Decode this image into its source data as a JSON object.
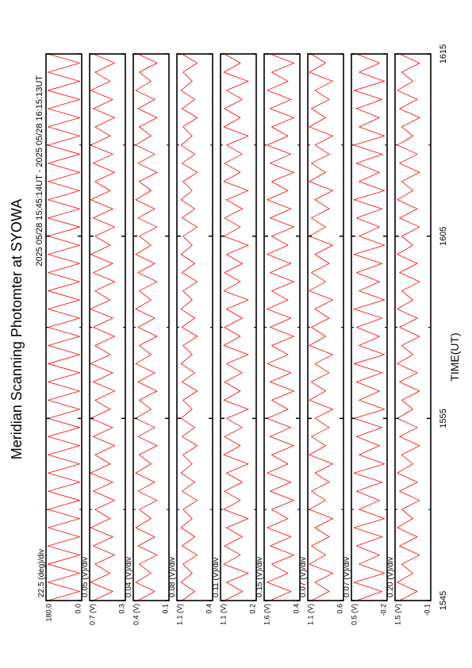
{
  "chart_data": {
    "type": "line",
    "title": "Meridian Scanning Photomter at SYOWA",
    "subtitle": "2025 05/28 15:45:14UT - 2025 05/28 16:15:13UT",
    "xlabel": "TIME(UT)",
    "xlim": [
      0,
      30
    ],
    "xticks": [
      {
        "value": 0,
        "label": "1545"
      },
      {
        "value": 10,
        "label": "1555"
      },
      {
        "value": 20,
        "label": "1605"
      },
      {
        "value": 30,
        "label": "1615"
      }
    ],
    "xminor": [
      5,
      15,
      25
    ],
    "x": [
      0,
      0.5,
      1,
      1.5,
      2,
      2.5,
      3,
      3.5,
      4,
      4.5,
      5,
      5.5,
      6,
      6.5,
      7,
      7.5,
      8,
      8.5,
      9,
      9.5,
      10,
      10.5,
      11,
      11.5,
      12,
      12.5,
      13,
      13.5,
      14,
      14.5,
      15,
      15.5,
      16,
      16.5,
      17,
      17.5,
      18,
      18.5,
      19,
      19.5,
      20,
      20.5,
      21,
      21.5,
      22,
      22.5,
      23,
      23.5,
      24,
      24.5,
      25,
      25.5,
      26,
      26.5,
      27,
      27.5,
      28,
      28.5,
      29,
      29.5,
      30
    ],
    "panels": [
      {
        "scale_label": "22.5 (deg)/div",
        "color": "#ff0000",
        "ylim": [
          0,
          180
        ],
        "yticks": [
          {
            "value": 0,
            "label": "0.0"
          },
          {
            "value": 180,
            "label": "180.0"
          }
        ],
        "values": [
          170,
          10,
          170,
          10,
          170,
          10,
          170,
          10,
          170,
          10,
          170,
          10,
          170,
          10,
          170,
          10,
          170,
          10,
          170,
          10,
          170,
          10,
          170,
          10,
          170,
          10,
          170,
          10,
          170,
          10,
          170,
          10,
          170,
          10,
          170,
          10,
          170,
          10,
          170,
          10,
          170,
          10,
          170,
          10,
          170,
          10,
          170,
          10,
          170,
          10,
          170,
          10,
          170,
          10,
          170,
          10,
          170,
          10,
          170,
          10,
          170
        ]
      },
      {
        "scale_label": "0.05 (V)/div",
        "color": "#ff0000",
        "ylim": [
          0.3,
          0.7
        ],
        "yticks": [
          {
            "value": 0.3,
            "label": "0.3"
          },
          {
            "value": 0.7,
            "label": "0.7 (V)"
          }
        ],
        "values": [
          0.66,
          0.44,
          0.69,
          0.47,
          0.64,
          0.42,
          0.66,
          0.44,
          0.69,
          0.47,
          0.64,
          0.42,
          0.66,
          0.44,
          0.69,
          0.47,
          0.64,
          0.42,
          0.66,
          0.44,
          0.69,
          0.47,
          0.64,
          0.42,
          0.66,
          0.44,
          0.69,
          0.47,
          0.64,
          0.42,
          0.66,
          0.44,
          0.69,
          0.47,
          0.64,
          0.42,
          0.66,
          0.44,
          0.69,
          0.47,
          0.64,
          0.42,
          0.66,
          0.44,
          0.69,
          0.47,
          0.64,
          0.42,
          0.66,
          0.44,
          0.69,
          0.47,
          0.64,
          0.42,
          0.66,
          0.44,
          0.69,
          0.47,
          0.64,
          0.42,
          0.66
        ]
      },
      {
        "scale_label": "0.04 (V)/div",
        "color": "#ff0000",
        "ylim": [
          0.1,
          0.4
        ],
        "yticks": [
          {
            "value": 0.1,
            "label": "0.1"
          },
          {
            "value": 0.4,
            "label": "0.4 (V)"
          }
        ],
        "values": [
          0.36,
          0.22,
          0.38,
          0.25,
          0.35,
          0.2,
          0.36,
          0.22,
          0.38,
          0.25,
          0.35,
          0.2,
          0.36,
          0.22,
          0.38,
          0.25,
          0.35,
          0.2,
          0.36,
          0.22,
          0.38,
          0.25,
          0.35,
          0.2,
          0.36,
          0.22,
          0.38,
          0.25,
          0.35,
          0.2,
          0.36,
          0.22,
          0.38,
          0.25,
          0.35,
          0.2,
          0.36,
          0.22,
          0.38,
          0.25,
          0.35,
          0.2,
          0.36,
          0.22,
          0.38,
          0.25,
          0.35,
          0.2,
          0.36,
          0.22,
          0.38,
          0.25,
          0.35,
          0.2,
          0.36,
          0.22,
          0.38,
          0.25,
          0.35,
          0.2,
          0.36
        ]
      },
      {
        "scale_label": "0.08 (V)/div",
        "color": "#ff0000",
        "ylim": [
          0.4,
          1.1
        ],
        "yticks": [
          {
            "value": 0.4,
            "label": "0.4"
          },
          {
            "value": 1.1,
            "label": "1.1 (V)"
          }
        ],
        "values": [
          1.0,
          0.75,
          1.02,
          0.8,
          0.98,
          0.7,
          1.0,
          0.75,
          1.02,
          0.8,
          0.98,
          0.7,
          1.0,
          0.75,
          1.02,
          0.8,
          0.98,
          0.7,
          1.0,
          0.75,
          1.02,
          0.8,
          0.98,
          0.7,
          1.0,
          0.75,
          1.02,
          0.8,
          0.98,
          0.7,
          1.0,
          0.75,
          1.02,
          0.8,
          0.98,
          0.7,
          1.0,
          0.75,
          1.02,
          0.8,
          0.98,
          0.7,
          1.0,
          0.75,
          1.02,
          0.8,
          0.98,
          0.7,
          1.0,
          0.75,
          1.02,
          0.8,
          0.98,
          0.7,
          1.0,
          0.75,
          1.02,
          0.8,
          0.98,
          0.7,
          1.0
        ]
      },
      {
        "scale_label": "0.11 (V)/div",
        "color": "#ff0000",
        "ylim": [
          0.2,
          1.1
        ],
        "yticks": [
          {
            "value": 0.2,
            "label": "0.2"
          },
          {
            "value": 1.1,
            "label": "1.1 (V)"
          }
        ],
        "values": [
          1.0,
          0.55,
          0.95,
          0.4,
          1.02,
          0.6,
          1.0,
          0.55,
          0.95,
          0.4,
          1.02,
          0.6,
          1.0,
          0.55,
          0.95,
          0.4,
          1.02,
          0.6,
          1.0,
          0.55,
          0.95,
          0.4,
          1.02,
          0.6,
          1.0,
          0.55,
          0.95,
          0.4,
          1.02,
          0.6,
          1.0,
          0.55,
          0.95,
          0.4,
          1.02,
          0.6,
          1.0,
          0.55,
          0.95,
          0.4,
          1.02,
          0.6,
          1.0,
          0.55,
          0.95,
          0.4,
          1.02,
          0.6,
          1.0,
          0.55,
          0.95,
          0.4,
          1.02,
          0.6,
          1.0,
          0.55,
          0.95,
          0.4,
          1.02,
          0.6,
          1.0
        ]
      },
      {
        "scale_label": "0.15 (V)/div",
        "color": "#ff0000",
        "ylim": [
          0.4,
          1.6
        ],
        "yticks": [
          {
            "value": 0.4,
            "label": "0.4"
          },
          {
            "value": 1.6,
            "label": "1.6 (V)"
          }
        ],
        "values": [
          1.4,
          0.7,
          1.5,
          0.8,
          1.35,
          0.6,
          1.4,
          0.7,
          1.5,
          0.8,
          1.35,
          0.6,
          1.4,
          0.7,
          1.5,
          0.8,
          1.35,
          0.6,
          1.4,
          0.7,
          1.5,
          0.8,
          1.35,
          0.6,
          1.4,
          0.7,
          1.5,
          0.8,
          1.35,
          0.6,
          1.4,
          0.7,
          1.5,
          0.8,
          1.35,
          0.6,
          1.4,
          0.7,
          1.5,
          0.8,
          1.35,
          0.6,
          1.4,
          0.7,
          1.5,
          0.8,
          1.35,
          0.6,
          1.4,
          0.7,
          1.5,
          0.8,
          1.35,
          0.6,
          1.4,
          0.7,
          1.5,
          0.8,
          1.35,
          0.6,
          1.4
        ]
      },
      {
        "scale_label": "0.07 (V)/div",
        "color": "#ff0000",
        "ylim": [
          0.6,
          1.1
        ],
        "yticks": [
          {
            "value": 0.6,
            "label": "0.6"
          },
          {
            "value": 1.1,
            "label": "1.1 (V)"
          }
        ],
        "values": [
          1.05,
          0.8,
          1.0,
          0.75,
          1.08,
          0.85,
          1.05,
          0.8,
          1.0,
          0.75,
          1.08,
          0.85,
          1.05,
          0.8,
          1.0,
          0.75,
          1.08,
          0.85,
          1.05,
          0.8,
          1.0,
          0.75,
          1.08,
          0.85,
          1.05,
          0.8,
          1.0,
          0.75,
          1.08,
          0.85,
          1.05,
          0.8,
          1.0,
          0.75,
          1.08,
          0.85,
          1.05,
          0.8,
          1.0,
          0.75,
          1.08,
          0.85,
          1.05,
          0.8,
          1.0,
          0.75,
          1.08,
          0.85,
          1.05,
          0.8,
          1.0,
          0.75,
          1.08,
          0.85,
          1.05,
          0.8,
          1.0,
          0.75,
          1.08,
          0.85,
          1.05
        ]
      },
      {
        "scale_label": "0.07 (V)/div",
        "color": "#ff0000",
        "ylim": [
          -0.2,
          0.5
        ],
        "yticks": [
          {
            "value": -0.2,
            "label": "-0.2"
          },
          {
            "value": 0.5,
            "label": "0.5 (V)"
          }
        ],
        "values": [
          0.4,
          -0.1,
          0.45,
          -0.15,
          0.35,
          -0.05,
          0.4,
          -0.1,
          0.45,
          -0.15,
          0.35,
          -0.05,
          0.4,
          -0.1,
          0.45,
          -0.15,
          0.35,
          -0.05,
          0.4,
          -0.1,
          0.45,
          -0.15,
          0.35,
          -0.05,
          0.4,
          -0.1,
          0.45,
          -0.15,
          0.35,
          -0.05,
          0.4,
          -0.1,
          0.45,
          -0.15,
          0.35,
          -0.05,
          0.4,
          -0.1,
          0.45,
          -0.15,
          0.35,
          -0.05,
          0.4,
          -0.1,
          0.45,
          -0.15,
          0.35,
          -0.05,
          0.4,
          -0.1,
          0.45,
          -0.15,
          0.35,
          -0.05,
          0.4,
          -0.1,
          0.45,
          -0.15,
          0.35,
          -0.05,
          0.4
        ]
      },
      {
        "scale_label": "0.20 (V)/div",
        "color": "#ff0000",
        "ylim": [
          -0.1,
          1.5
        ],
        "yticks": [
          {
            "value": -0.1,
            "label": "-0.1"
          },
          {
            "value": 1.5,
            "label": "1.5 (V)"
          }
        ],
        "values": [
          1.3,
          0.5,
          1.4,
          0.7,
          1.2,
          0.4,
          1.3,
          0.5,
          1.4,
          0.7,
          1.2,
          0.4,
          1.3,
          0.5,
          1.4,
          0.7,
          1.2,
          0.4,
          1.3,
          0.5,
          1.4,
          0.7,
          1.2,
          0.4,
          1.3,
          0.5,
          1.4,
          0.7,
          1.2,
          0.4,
          1.3,
          0.5,
          1.4,
          0.7,
          1.2,
          0.4,
          1.3,
          0.5,
          1.4,
          0.7,
          1.2,
          0.4,
          1.3,
          0.5,
          1.4,
          0.7,
          1.2,
          0.4,
          1.3,
          0.5,
          1.4,
          0.7,
          1.2,
          0.4,
          1.3,
          0.5,
          1.4,
          0.7,
          1.2,
          0.4,
          1.3
        ]
      }
    ]
  }
}
